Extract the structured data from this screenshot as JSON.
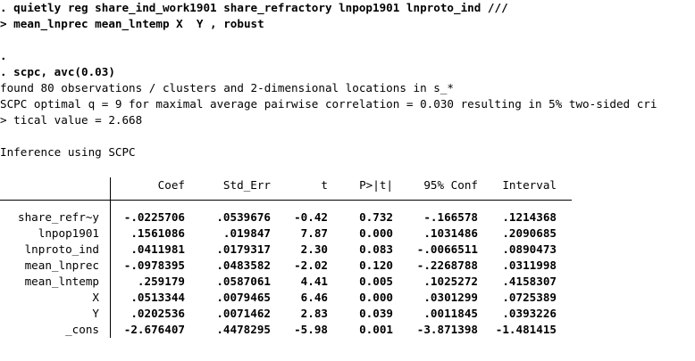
{
  "console": {
    "lines": [
      {
        "text": ". quietly reg share_ind_work1901 share_refractory lnpop1901 lnproto_ind ///",
        "bold": true
      },
      {
        "text": "> mean_lnprec mean_lntemp X  Y , robust",
        "bold": true
      },
      {
        "text": "",
        "bold": false
      },
      {
        "text": ".",
        "bold": true
      },
      {
        "text": ". scpc, avc(0.03)",
        "bold": true
      },
      {
        "text": "found 80 observations / clusters and 2-dimensional locations in s_*",
        "bold": false
      },
      {
        "text": "SCPC optimal q = 9 for maximal average pairwise correlation = 0.030 resulting in 5% two-sided cri",
        "bold": false
      },
      {
        "text": "> tical value = 2.668",
        "bold": false
      },
      {
        "text": "",
        "bold": false
      },
      {
        "text": "Inference using SCPC",
        "bold": false
      }
    ]
  },
  "table": {
    "headers": [
      "Coef",
      "Std_Err",
      "t",
      "P>|t|",
      "95% Conf",
      "Interval"
    ],
    "rows": [
      {
        "name": "share_refr~y",
        "cells": [
          "-.0225706",
          ".0539676",
          "-0.42",
          "0.732",
          "-.166578",
          ".1214368"
        ]
      },
      {
        "name": "lnpop1901",
        "cells": [
          ".1561086",
          ".019847",
          "7.87",
          "0.000",
          ".1031486",
          ".2090685"
        ]
      },
      {
        "name": "lnproto_ind",
        "cells": [
          ".0411981",
          ".0179317",
          "2.30",
          "0.083",
          "-.0066511",
          ".0890473"
        ]
      },
      {
        "name": "mean_lnprec",
        "cells": [
          "-.0978395",
          ".0483582",
          "-2.02",
          "0.120",
          "-.2268788",
          ".0311998"
        ]
      },
      {
        "name": "mean_lntemp",
        "cells": [
          ".259179",
          ".0587061",
          "4.41",
          "0.005",
          ".1025272",
          ".4158307"
        ]
      },
      {
        "name": "X",
        "cells": [
          ".0513344",
          ".0079465",
          "6.46",
          "0.000",
          ".0301299",
          ".0725389"
        ]
      },
      {
        "name": "Y",
        "cells": [
          ".0202536",
          ".0071462",
          "2.83",
          "0.039",
          ".0011845",
          ".0393226"
        ]
      },
      {
        "name": "_cons",
        "cells": [
          "-2.676407",
          ".4478295",
          "-5.98",
          "0.001",
          "-3.871398",
          "-1.481415"
        ]
      }
    ]
  }
}
